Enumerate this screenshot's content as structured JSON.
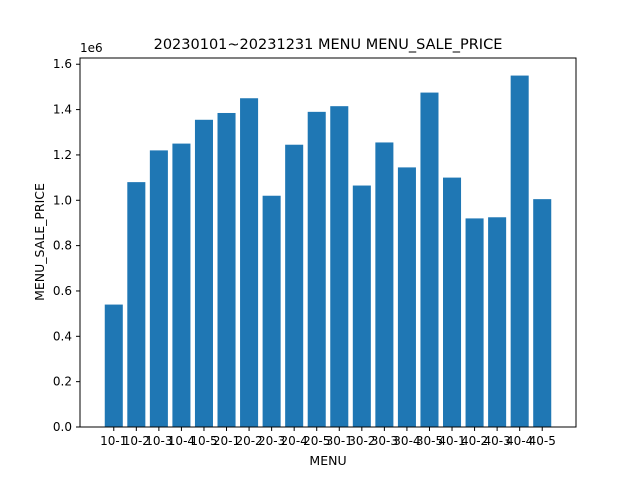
{
  "chart_data": {
    "type": "bar",
    "title": "20230101~20231231 MENU   MENU_SALE_PRICE",
    "xlabel": "MENU",
    "ylabel": "MENU_SALE_PRICE",
    "y_scale_label": "1e6",
    "categories": [
      "10-1",
      "10-2",
      "10-3",
      "10-4",
      "10-5",
      "20-1",
      "20-2",
      "20-3",
      "20-4",
      "20-5",
      "30-1",
      "30-2",
      "30-3",
      "30-4",
      "30-5",
      "40-1",
      "40-2",
      "40-3",
      "40-4",
      "40-5"
    ],
    "values": [
      540000,
      1080000,
      1220000,
      1250000,
      1355000,
      1385000,
      1450000,
      1020000,
      1245000,
      1390000,
      1415000,
      1065000,
      1255000,
      1145000,
      1475000,
      1100000,
      920000,
      925000,
      1550000,
      1005000
    ],
    "y_ticks": [
      "0.0",
      "0.2",
      "0.4",
      "0.6",
      "0.8",
      "1.0",
      "1.2",
      "1.4",
      "1.6"
    ],
    "y_tick_values": [
      0,
      200000,
      400000,
      600000,
      800000,
      1000000,
      1200000,
      1400000,
      1600000
    ],
    "ylim": [
      0,
      1627500
    ],
    "bar_color": "#1f77b4",
    "grid": false,
    "legend": "none"
  }
}
